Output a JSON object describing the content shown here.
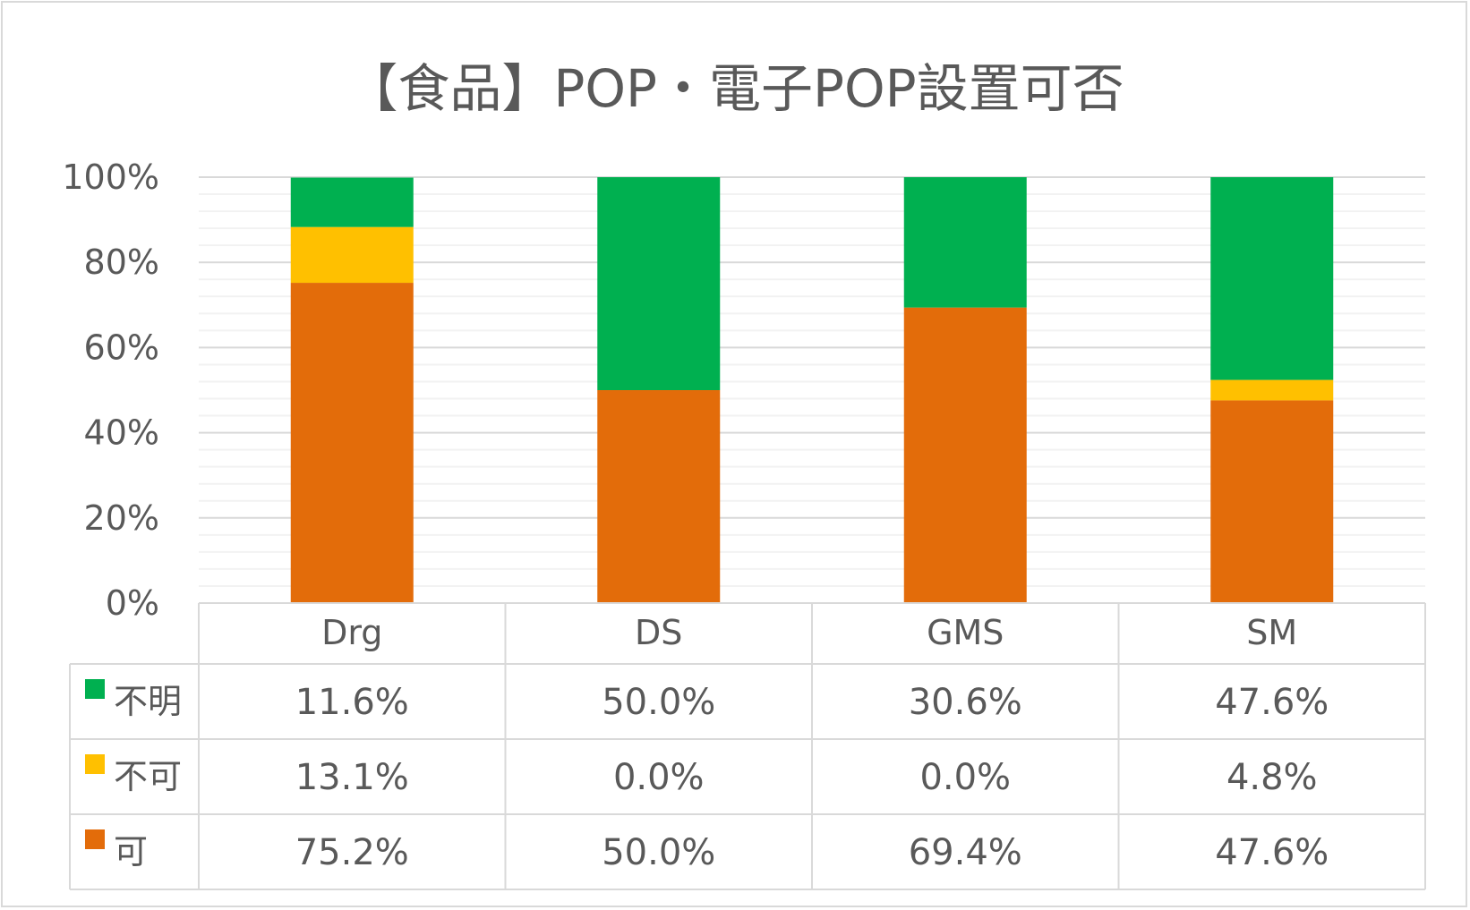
{
  "chart_data": {
    "type": "bar",
    "stacked": "percent",
    "title": "【食品】POP・電子POP設置可否",
    "categories": [
      "Drg",
      "DS",
      "GMS",
      "SM"
    ],
    "series": [
      {
        "name": "可",
        "values": [
          75.2,
          50.0,
          69.4,
          47.6
        ],
        "color": "#e36c0a"
      },
      {
        "name": "不可",
        "values": [
          13.1,
          0.0,
          0.0,
          4.8
        ],
        "color": "#ffc000"
      },
      {
        "name": "不明",
        "values": [
          11.6,
          50.0,
          30.6,
          47.6
        ],
        "color": "#00b050"
      }
    ],
    "ylim": [
      0,
      100
    ],
    "yticks": [
      "0%",
      "20%",
      "40%",
      "60%",
      "80%",
      "100%"
    ],
    "data_table": {
      "rows": [
        {
          "label": "不明",
          "cells": [
            "11.6%",
            "50.0%",
            "30.6%",
            "47.6%"
          ]
        },
        {
          "label": "不可",
          "cells": [
            "13.1%",
            "0.0%",
            "0.0%",
            "4.8%"
          ]
        },
        {
          "label": "可",
          "cells": [
            "75.2%",
            "50.0%",
            "69.4%",
            "47.6%"
          ]
        }
      ]
    },
    "grid": true,
    "legend": "data-table"
  }
}
